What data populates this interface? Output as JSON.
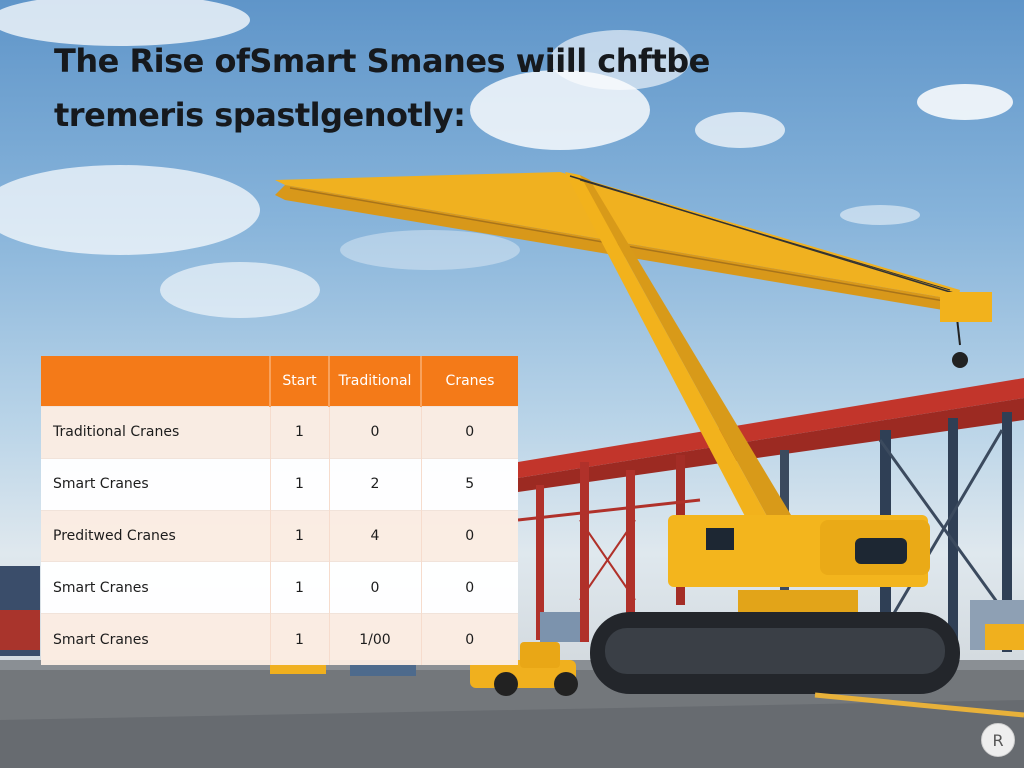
{
  "title": {
    "line1": "The Rise ofSmart Smanes wiill chftbe",
    "line2": "tremeris spastlgenotly:"
  },
  "table": {
    "headers": [
      "",
      "Start",
      "Traditional",
      "Cranes"
    ],
    "rows": [
      [
        "Traditional Cranes",
        "1",
        "0",
        "0"
      ],
      [
        "Smart Cranes",
        "1",
        "2",
        "5"
      ],
      [
        "Preditwed Cranes",
        "1",
        "4",
        "0"
      ],
      [
        "Smart Cranes",
        "1",
        "0",
        "0"
      ],
      [
        "Smart Cranes",
        "1",
        "1/00",
        "0"
      ]
    ]
  },
  "corner_button": {
    "label": "R",
    "icon": "r-badge-icon"
  },
  "colors": {
    "header_orange": "#f47a18",
    "crane_yellow": "#f2b21c",
    "steel_red": "#c2352b",
    "sky_blue": "#6ea2d2"
  }
}
